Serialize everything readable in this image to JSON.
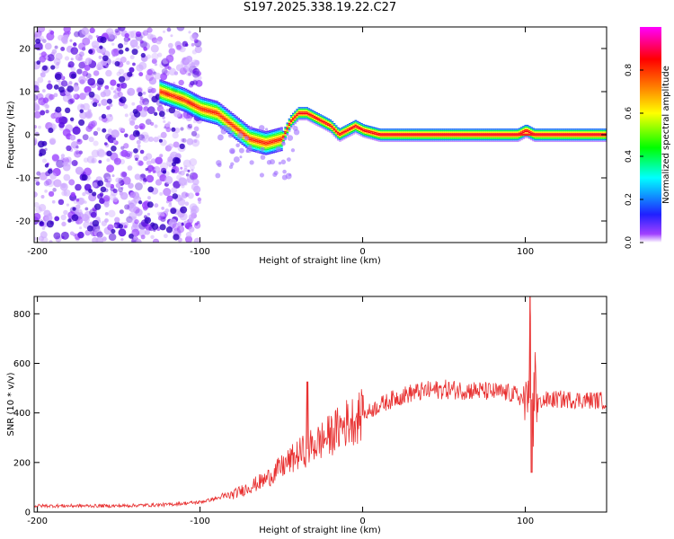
{
  "title": "S197.2025.338.19.22.C27",
  "chart_data": [
    {
      "type": "heatmap",
      "xlabel": "Height of straight line (km)",
      "ylabel": "Frequency (Hz)",
      "xlim": [
        -202,
        150
      ],
      "ylim": [
        -25,
        25
      ],
      "xticks": [
        -200,
        -100,
        0,
        100
      ],
      "yticks": [
        -20,
        -10,
        0,
        10,
        20
      ],
      "colorbar": {
        "label": "Normalized spectral amplitude",
        "range": [
          0,
          1
        ],
        "ticks": [
          "0.0",
          "0.2",
          "0.4",
          "0.6",
          "0.8"
        ],
        "colors": [
          "#ffffff",
          "#a040ff",
          "#2020ff",
          "#00ffff",
          "#00ff00",
          "#ffff00",
          "#ff8000",
          "#ff0000",
          "#ff00ff"
        ]
      },
      "ridge": {
        "x": [
          -125,
          -110,
          -100,
          -90,
          -80,
          -70,
          -60,
          -50,
          -45,
          -40,
          -35,
          -30,
          -20,
          -15,
          -10,
          -5,
          0,
          10,
          20,
          60,
          95,
          100,
          105,
          150
        ],
        "freq": [
          10,
          8,
          6,
          5,
          2,
          -1,
          -2,
          -1,
          3,
          5,
          5,
          4,
          2,
          0,
          1,
          2,
          1,
          0,
          0,
          0,
          0,
          1,
          0,
          0
        ]
      }
    },
    {
      "type": "line",
      "xlabel": "Height of straight line (km)",
      "ylabel": "SNR (10 * v/v)",
      "xlim": [
        -202,
        150
      ],
      "ylim": [
        0,
        870
      ],
      "xticks": [
        -200,
        -100,
        0,
        100
      ],
      "yticks": [
        0,
        200,
        400,
        600,
        800
      ],
      "series": [
        {
          "name": "SNR",
          "color": "#e83030",
          "x": [
            -202,
            -150,
            -120,
            -100,
            -80,
            -60,
            -40,
            -30,
            -20,
            -10,
            0,
            10,
            20,
            30,
            40,
            50,
            70,
            90,
            95,
            100,
            103,
            105,
            110,
            120,
            150
          ],
          "values": [
            25,
            25,
            30,
            40,
            70,
            130,
            230,
            270,
            310,
            360,
            390,
            430,
            460,
            480,
            490,
            495,
            490,
            480,
            470,
            450,
            460,
            450,
            450,
            455,
            450
          ],
          "spikes": [
            {
              "x": -34,
              "value": 525
            },
            {
              "x": 0,
              "value": 470
            },
            {
              "x": 103,
              "value": 870
            },
            {
              "x": 104,
              "value": 160
            }
          ]
        }
      ]
    }
  ]
}
